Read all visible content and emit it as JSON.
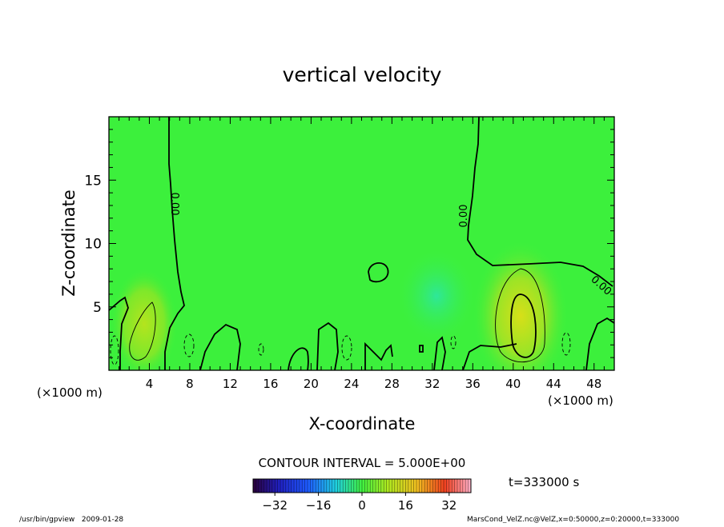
{
  "chart_data": {
    "type": "contour",
    "title": "vertical velocity",
    "xlabel": "X-coordinate",
    "ylabel": "Z-coordinate",
    "x_unit": "(×1000 m)",
    "y_unit": "(×1000 m)",
    "xlim": [
      0,
      50
    ],
    "ylim": [
      0,
      20
    ],
    "x_ticks": [
      4,
      8,
      12,
      16,
      20,
      24,
      28,
      32,
      36,
      40,
      44,
      48
    ],
    "x_tick_labels": [
      "4",
      "8",
      "12",
      "16",
      "20",
      "24",
      "28",
      "32",
      "36",
      "40",
      "44",
      "48"
    ],
    "y_ticks": [
      5,
      10,
      15
    ],
    "y_tick_labels": [
      "5",
      "10",
      "15"
    ],
    "contour_interval_label": "CONTOUR INTERVAL = 5.000E+00",
    "zero_contour_label": "0.00",
    "colorbar": {
      "range": [
        -40,
        40
      ],
      "ticks": [
        -32,
        -16,
        0,
        16,
        32
      ],
      "tick_labels": [
        "−32",
        "−16",
        "0",
        "16",
        "32"
      ]
    },
    "updraft_cores": [
      {
        "x": 4.0,
        "z": 2.8,
        "peak": 15
      },
      {
        "x": 40.8,
        "z": 4.0,
        "peak": 20
      }
    ],
    "time_label": "t=333000 s"
  },
  "footer": {
    "left": "/usr/bin/gpview   2009-01-28",
    "right": "MarsCond_VelZ.nc@VelZ,x=0:50000,z=0:20000,t=333000"
  }
}
